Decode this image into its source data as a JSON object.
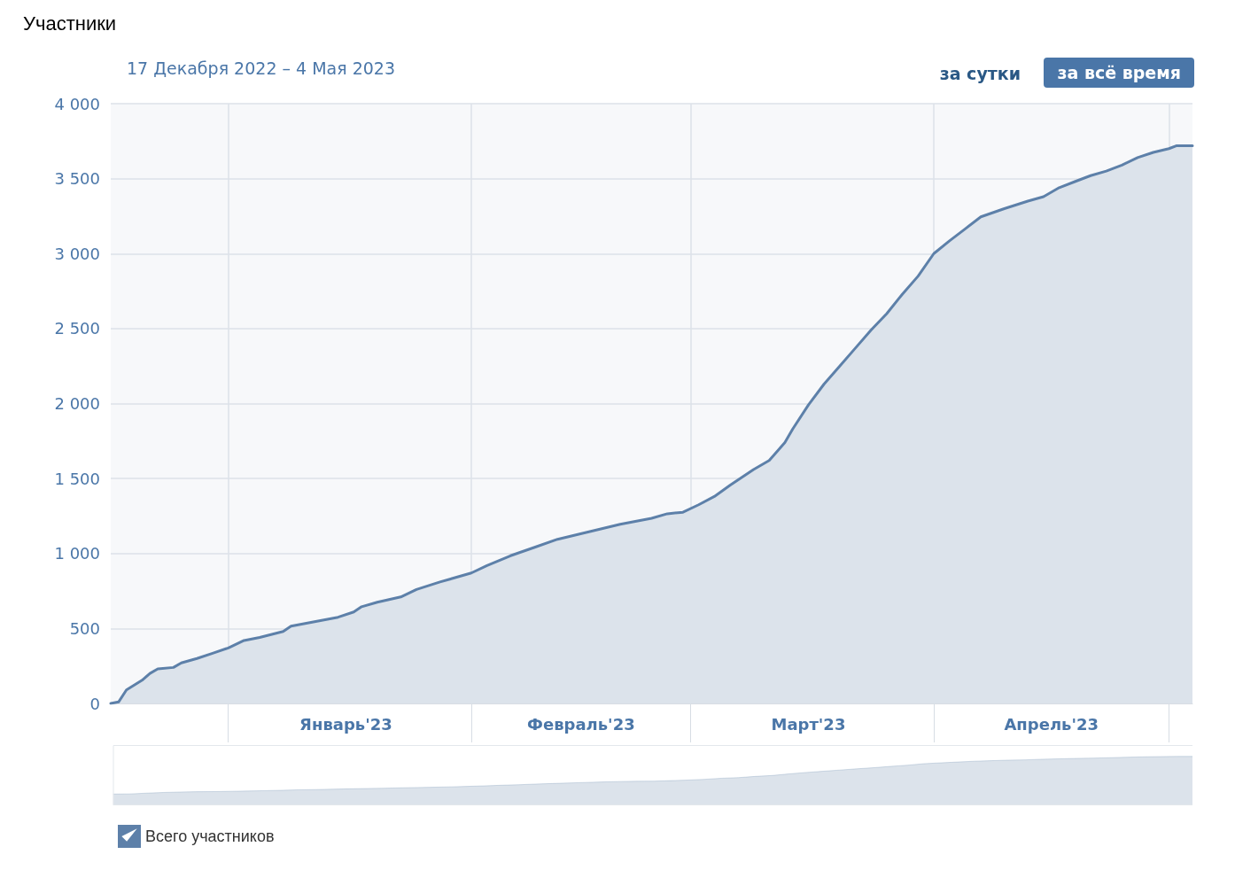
{
  "chart_data": {
    "type": "area",
    "title": "Участники",
    "subtitle": "17 Декабря 2022 – 4 Мая 2023",
    "annotations": [
      "за сутки",
      "за всё время"
    ],
    "x": [
      "2022-12-17",
      "2022-12-18",
      "2022-12-19",
      "2022-12-21",
      "2022-12-22",
      "2022-12-23",
      "2022-12-25",
      "2022-12-26",
      "2022-12-28",
      "2022-12-30",
      "2023-01-01",
      "2023-01-03",
      "2023-01-05",
      "2023-01-08",
      "2023-01-09",
      "2023-01-12",
      "2023-01-15",
      "2023-01-17",
      "2023-01-18",
      "2023-01-20",
      "2023-01-23",
      "2023-01-25",
      "2023-01-28",
      "2023-02-01",
      "2023-02-03",
      "2023-02-06",
      "2023-02-09",
      "2023-02-12",
      "2023-02-16",
      "2023-02-20",
      "2023-02-24",
      "2023-02-26",
      "2023-02-28",
      "2023-03-02",
      "2023-03-04",
      "2023-03-06",
      "2023-03-09",
      "2023-03-11",
      "2023-03-13",
      "2023-03-14",
      "2023-03-16",
      "2023-03-18",
      "2023-03-20",
      "2023-03-22",
      "2023-03-24",
      "2023-03-26",
      "2023-03-28",
      "2023-03-30",
      "2023-04-01",
      "2023-04-03",
      "2023-04-05",
      "2023-04-07",
      "2023-04-10",
      "2023-04-13",
      "2023-04-15",
      "2023-04-17",
      "2023-04-19",
      "2023-04-21",
      "2023-04-23",
      "2023-04-25",
      "2023-04-27",
      "2023-04-29",
      "2023-05-01",
      "2023-05-02",
      "2023-05-04"
    ],
    "series": [
      {
        "name": "Всего участников",
        "color": "#5d80a9",
        "values": [
          0,
          10,
          90,
          155,
          200,
          230,
          240,
          270,
          300,
          335,
          370,
          420,
          440,
          480,
          515,
          545,
          575,
          610,
          645,
          675,
          710,
          760,
          810,
          870,
          920,
          985,
          1040,
          1095,
          1145,
          1195,
          1235,
          1265,
          1275,
          1325,
          1380,
          1455,
          1560,
          1620,
          1740,
          1830,
          1990,
          2130,
          2250,
          2370,
          2490,
          2600,
          2730,
          2850,
          3000,
          3085,
          3165,
          3245,
          3300,
          3350,
          3380,
          3440,
          3480,
          3520,
          3550,
          3590,
          3640,
          3675,
          3700,
          3720,
          3720
        ]
      }
    ],
    "xlim": [
      "2022-12-17",
      "2023-05-04"
    ],
    "xticks": [
      {
        "value": "2023-01-01",
        "label": null
      },
      {
        "value": "2023-01-16",
        "label": "Январь'23"
      },
      {
        "value": "2023-02-01",
        "label": null
      },
      {
        "value": "2023-02-15",
        "label": "Февраль'23"
      },
      {
        "value": "2023-03-01",
        "label": null
      },
      {
        "value": "2023-03-16",
        "label": "Март'23"
      },
      {
        "value": "2023-04-01",
        "label": null
      },
      {
        "value": "2023-04-16",
        "label": "Апрель'23"
      },
      {
        "value": "2023-05-01",
        "label": null
      }
    ],
    "ylim": [
      0,
      4000
    ],
    "yticks": [
      {
        "value": 0,
        "label": "0"
      },
      {
        "value": 500,
        "label": "500"
      },
      {
        "value": 1000,
        "label": "1 000"
      },
      {
        "value": 1500,
        "label": "1 500"
      },
      {
        "value": 2000,
        "label": "2 000"
      },
      {
        "value": 2500,
        "label": "2 500"
      },
      {
        "value": 3000,
        "label": "3 000"
      },
      {
        "value": 3500,
        "label": "3 500"
      },
      {
        "value": 4000,
        "label": "4 000"
      }
    ],
    "grid": true,
    "legend": "bottom left",
    "marker": "none",
    "line_style": "solid"
  }
}
